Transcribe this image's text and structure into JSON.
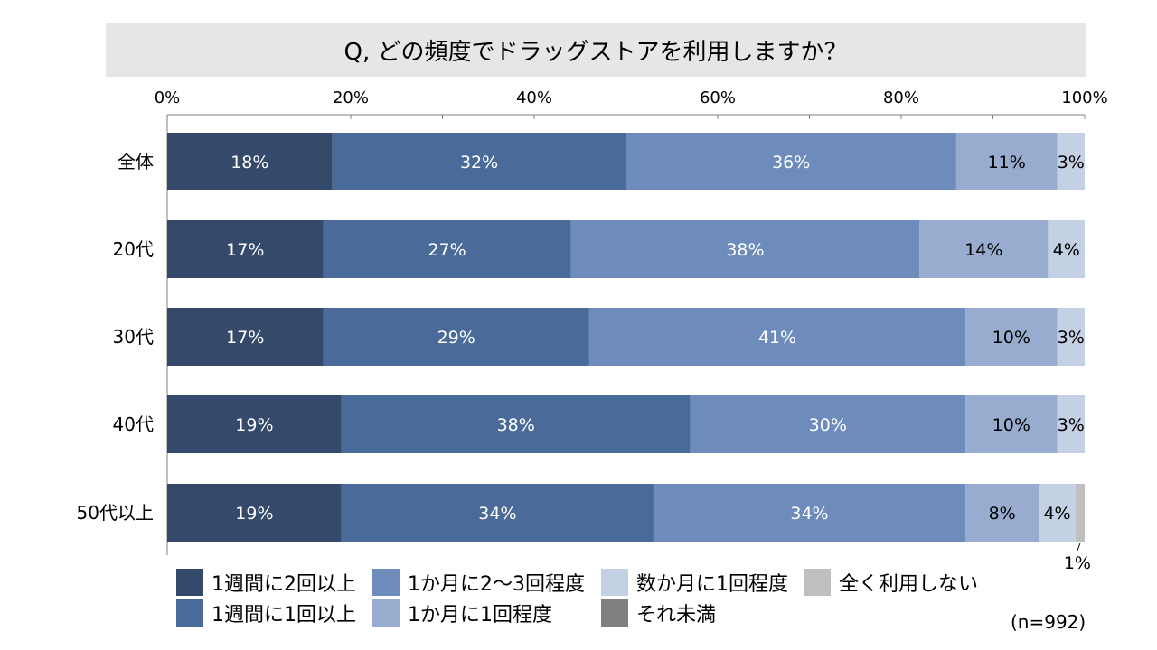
{
  "title": "Q, どの頻度でドラッグストアを利用しますか？",
  "note": "(n=992)",
  "chart_data": {
    "type": "bar",
    "orientation": "horizontal",
    "stacked": true,
    "xlim": [
      0,
      100
    ],
    "x_ticks": [
      "0%",
      "20%",
      "40%",
      "60%",
      "80%",
      "100%"
    ],
    "categories": [
      "全体",
      "20代",
      "30代",
      "40代",
      "50代以上"
    ],
    "series": [
      {
        "name": "1週間に2回以上",
        "color": "#354a6a",
        "values": [
          18,
          17,
          17,
          19,
          19
        ],
        "labels": [
          "18%",
          "17%",
          "17%",
          "19%",
          "19%"
        ]
      },
      {
        "name": "1週間に1回以上",
        "color": "#4a6a99",
        "values": [
          32,
          27,
          29,
          38,
          34
        ],
        "labels": [
          "32%",
          "27%",
          "29%",
          "38%",
          "34%"
        ]
      },
      {
        "name": "1か月に2～3回程度",
        "color": "#6d8cbb",
        "values": [
          36,
          38,
          41,
          30,
          34
        ],
        "labels": [
          "36%",
          "38%",
          "41%",
          "30%",
          "34%"
        ]
      },
      {
        "name": "1か月に1回程度",
        "color": "#97acce",
        "values": [
          11,
          14,
          10,
          10,
          8
        ],
        "labels": [
          "11%",
          "14%",
          "10%",
          "10%",
          "8%"
        ]
      },
      {
        "name": "数か月に1回程度",
        "color": "#c4d1e4",
        "values": [
          3,
          4,
          3,
          3,
          4
        ],
        "labels": [
          "3%",
          "4%",
          "3%",
          "3%",
          "4%"
        ]
      },
      {
        "name": "全く利用しない",
        "color": "#bfbfbf",
        "values": [
          0,
          0,
          0,
          0,
          1
        ],
        "labels": [
          "",
          "",
          "",
          "",
          "1%"
        ]
      },
      {
        "name": "それ未満",
        "color": "#808080",
        "values": [
          0,
          0,
          0,
          0,
          0
        ],
        "labels": [
          "",
          "",
          "",
          "",
          ""
        ]
      }
    ]
  },
  "legend_rows": [
    [
      "1週間に2回以上",
      "1か月に2～3回程度",
      "数か月に1回程度",
      "全く利用しない"
    ],
    [
      "1週間に1回以上",
      "1か月に1回程度",
      "それ未満"
    ]
  ]
}
